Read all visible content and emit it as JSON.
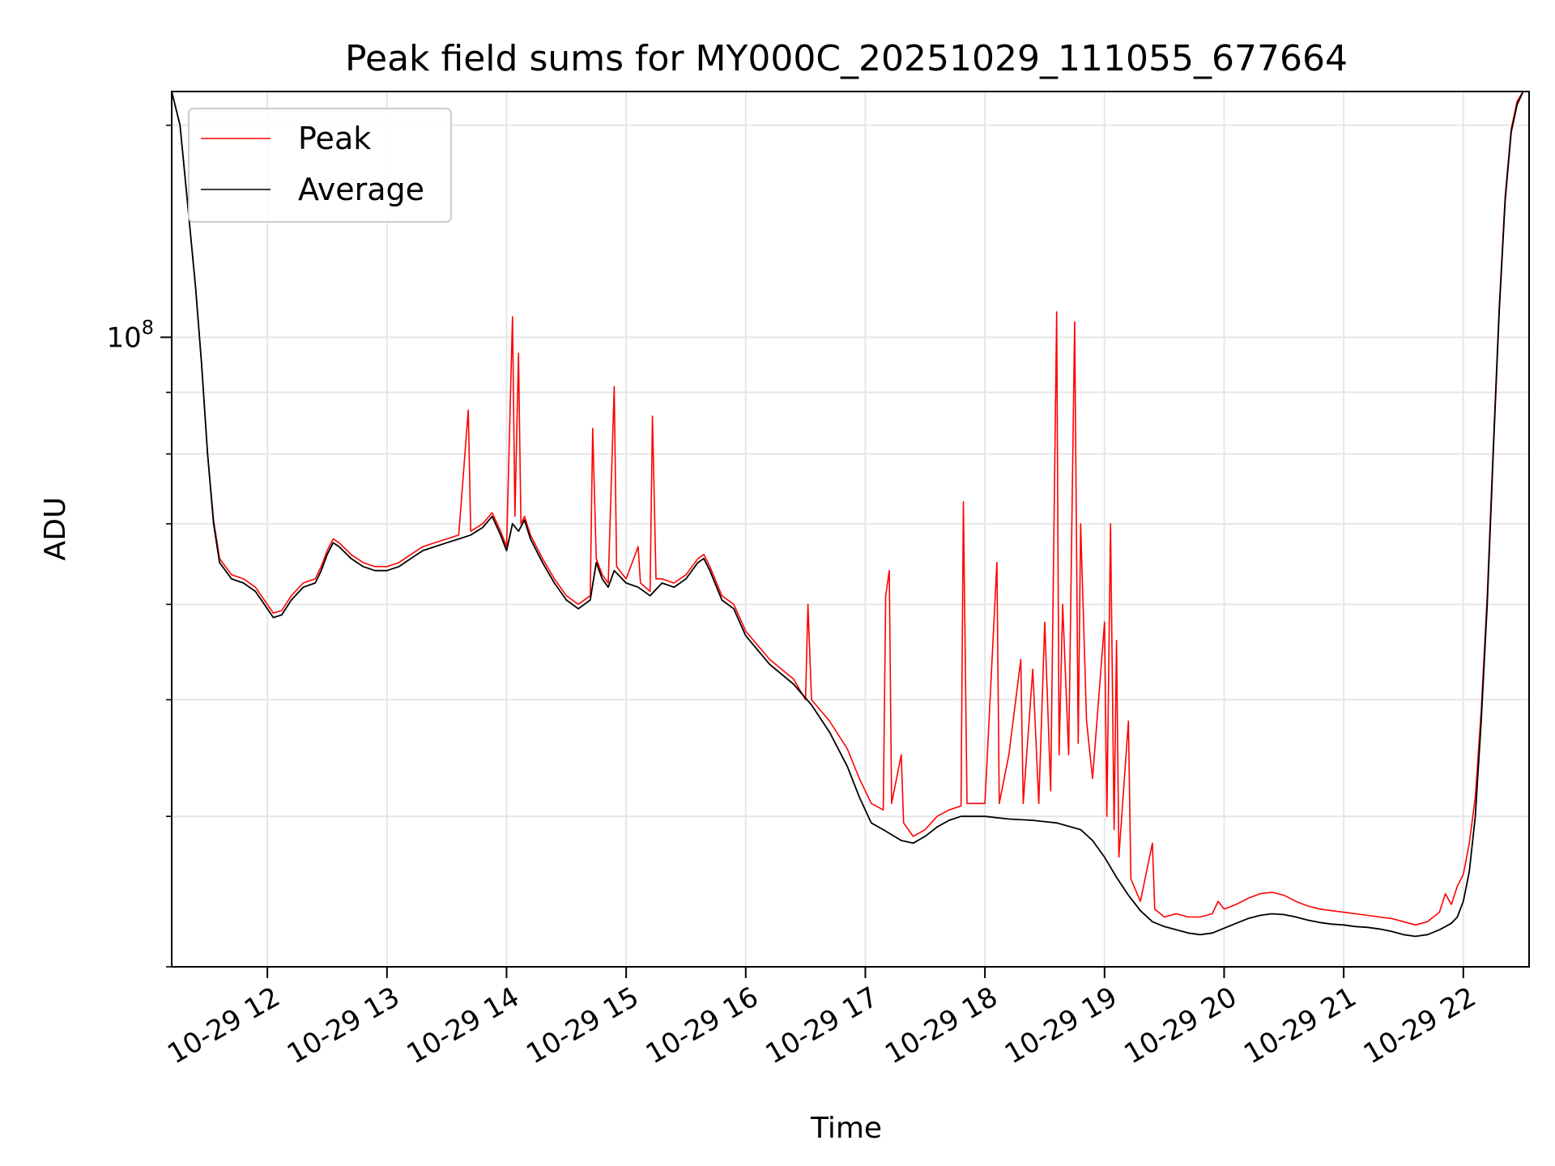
{
  "chart_data": {
    "type": "line",
    "title": "Peak field sums for MY000C_20251029_111055_677664",
    "xlabel": "Time",
    "ylabel": "ADU",
    "yscale": "log",
    "ylim": [
      30000000,
      160000000
    ],
    "xlim": [
      11.2,
      22.55
    ],
    "x_unit": "hour of 2025-10-29",
    "grid": true,
    "legend_position": "top-left",
    "x_ticks": [
      {
        "value": 12,
        "label": "10-29 12"
      },
      {
        "value": 13,
        "label": "10-29 13"
      },
      {
        "value": 14,
        "label": "10-29 14"
      },
      {
        "value": 15,
        "label": "10-29 15"
      },
      {
        "value": 16,
        "label": "10-29 16"
      },
      {
        "value": 17,
        "label": "10-29 17"
      },
      {
        "value": 18,
        "label": "10-29 18"
      },
      {
        "value": 19,
        "label": "10-29 19"
      },
      {
        "value": 20,
        "label": "10-29 20"
      },
      {
        "value": 21,
        "label": "10-29 21"
      },
      {
        "value": 22,
        "label": "10-29 22"
      }
    ],
    "y_ticks_major": [
      {
        "value": 100000000,
        "label_base": "10",
        "label_exp": "8"
      }
    ],
    "y_ticks_minor": [
      30000000,
      40000000,
      50000000,
      60000000,
      70000000,
      80000000,
      90000000
    ],
    "series": [
      {
        "name": "Average",
        "color": "#000000",
        "points": [
          [
            11.2,
            160000000
          ],
          [
            11.27,
            150000000
          ],
          [
            11.33,
            130000000
          ],
          [
            11.4,
            110000000
          ],
          [
            11.45,
            95000000
          ],
          [
            11.5,
            80000000
          ],
          [
            11.55,
            70000000
          ],
          [
            11.6,
            65000000
          ],
          [
            11.7,
            63000000
          ],
          [
            11.8,
            62500000
          ],
          [
            11.9,
            61500000
          ],
          [
            12.0,
            59500000
          ],
          [
            12.05,
            58500000
          ],
          [
            12.12,
            58800000
          ],
          [
            12.2,
            60500000
          ],
          [
            12.3,
            62000000
          ],
          [
            12.4,
            62500000
          ],
          [
            12.45,
            64000000
          ],
          [
            12.5,
            66000000
          ],
          [
            12.55,
            67500000
          ],
          [
            12.6,
            67000000
          ],
          [
            12.7,
            65500000
          ],
          [
            12.8,
            64500000
          ],
          [
            12.9,
            64000000
          ],
          [
            13.0,
            64000000
          ],
          [
            13.1,
            64500000
          ],
          [
            13.2,
            65500000
          ],
          [
            13.3,
            66500000
          ],
          [
            13.4,
            67000000
          ],
          [
            13.5,
            67500000
          ],
          [
            13.6,
            68000000
          ],
          [
            13.7,
            68500000
          ],
          [
            13.8,
            69500000
          ],
          [
            13.88,
            71000000
          ],
          [
            13.95,
            68500000
          ],
          [
            14.0,
            66500000
          ],
          [
            14.05,
            70000000
          ],
          [
            14.1,
            69000000
          ],
          [
            14.15,
            70500000
          ],
          [
            14.2,
            68000000
          ],
          [
            14.3,
            65000000
          ],
          [
            14.4,
            62500000
          ],
          [
            14.5,
            60500000
          ],
          [
            14.6,
            59500000
          ],
          [
            14.7,
            60500000
          ],
          [
            14.75,
            65000000
          ],
          [
            14.8,
            63000000
          ],
          [
            14.85,
            62000000
          ],
          [
            14.9,
            64000000
          ],
          [
            15.0,
            62500000
          ],
          [
            15.1,
            62000000
          ],
          [
            15.2,
            61000000
          ],
          [
            15.3,
            62500000
          ],
          [
            15.4,
            62000000
          ],
          [
            15.5,
            63000000
          ],
          [
            15.6,
            65000000
          ],
          [
            15.65,
            65500000
          ],
          [
            15.7,
            64000000
          ],
          [
            15.8,
            60500000
          ],
          [
            15.9,
            59500000
          ],
          [
            16.0,
            56500000
          ],
          [
            16.2,
            53500000
          ],
          [
            16.4,
            51500000
          ],
          [
            16.55,
            49500000
          ],
          [
            16.7,
            47000000
          ],
          [
            16.85,
            44000000
          ],
          [
            16.95,
            41500000
          ],
          [
            17.05,
            39500000
          ],
          [
            17.15,
            39000000
          ],
          [
            17.3,
            38200000
          ],
          [
            17.4,
            38000000
          ],
          [
            17.5,
            38500000
          ],
          [
            17.6,
            39200000
          ],
          [
            17.7,
            39700000
          ],
          [
            17.8,
            40000000
          ],
          [
            18.0,
            40000000
          ],
          [
            18.2,
            39800000
          ],
          [
            18.4,
            39700000
          ],
          [
            18.6,
            39500000
          ],
          [
            18.8,
            39000000
          ],
          [
            18.9,
            38200000
          ],
          [
            19.0,
            37000000
          ],
          [
            19.1,
            35600000
          ],
          [
            19.2,
            34400000
          ],
          [
            19.3,
            33400000
          ],
          [
            19.4,
            32700000
          ],
          [
            19.5,
            32400000
          ],
          [
            19.6,
            32200000
          ],
          [
            19.7,
            32000000
          ],
          [
            19.8,
            31900000
          ],
          [
            19.9,
            32000000
          ],
          [
            20.0,
            32300000
          ],
          [
            20.1,
            32600000
          ],
          [
            20.2,
            32900000
          ],
          [
            20.3,
            33100000
          ],
          [
            20.4,
            33200000
          ],
          [
            20.5,
            33150000
          ],
          [
            20.6,
            33000000
          ],
          [
            20.7,
            32800000
          ],
          [
            20.8,
            32650000
          ],
          [
            20.9,
            32550000
          ],
          [
            21.0,
            32500000
          ],
          [
            21.1,
            32400000
          ],
          [
            21.2,
            32350000
          ],
          [
            21.3,
            32250000
          ],
          [
            21.4,
            32100000
          ],
          [
            21.5,
            31900000
          ],
          [
            21.6,
            31800000
          ],
          [
            21.7,
            31900000
          ],
          [
            21.8,
            32200000
          ],
          [
            21.9,
            32600000
          ],
          [
            21.95,
            33000000
          ],
          [
            22.0,
            34000000
          ],
          [
            22.05,
            36000000
          ],
          [
            22.1,
            40000000
          ],
          [
            22.15,
            48000000
          ],
          [
            22.2,
            60000000
          ],
          [
            22.25,
            80000000
          ],
          [
            22.3,
            105000000
          ],
          [
            22.35,
            130000000
          ],
          [
            22.4,
            148000000
          ],
          [
            22.45,
            156000000
          ],
          [
            22.5,
            160000000
          ]
        ]
      },
      {
        "name": "Peak",
        "color": "#ff0000",
        "points": [
          [
            11.2,
            160000000
          ],
          [
            11.27,
            150000000
          ],
          [
            11.33,
            130000000
          ],
          [
            11.4,
            110000000
          ],
          [
            11.45,
            95000000
          ],
          [
            11.5,
            80000000
          ],
          [
            11.55,
            70500000
          ],
          [
            11.6,
            65500000
          ],
          [
            11.7,
            63500000
          ],
          [
            11.8,
            63000000
          ],
          [
            11.9,
            62000000
          ],
          [
            12.0,
            60000000
          ],
          [
            12.05,
            59000000
          ],
          [
            12.12,
            59300000
          ],
          [
            12.2,
            61000000
          ],
          [
            12.3,
            62500000
          ],
          [
            12.4,
            63000000
          ],
          [
            12.45,
            64500000
          ],
          [
            12.5,
            66500000
          ],
          [
            12.55,
            68000000
          ],
          [
            12.6,
            67500000
          ],
          [
            12.7,
            66000000
          ],
          [
            12.8,
            65000000
          ],
          [
            12.9,
            64500000
          ],
          [
            13.0,
            64500000
          ],
          [
            13.1,
            65000000
          ],
          [
            13.2,
            66000000
          ],
          [
            13.3,
            67000000
          ],
          [
            13.4,
            67500000
          ],
          [
            13.5,
            68000000
          ],
          [
            13.6,
            68500000
          ],
          [
            13.68,
            87000000
          ],
          [
            13.7,
            69000000
          ],
          [
            13.8,
            70000000
          ],
          [
            13.88,
            71500000
          ],
          [
            13.95,
            69000000
          ],
          [
            14.0,
            67000000
          ],
          [
            14.05,
            104000000
          ],
          [
            14.07,
            71000000
          ],
          [
            14.1,
            97000000
          ],
          [
            14.12,
            70000000
          ],
          [
            14.15,
            71000000
          ],
          [
            14.2,
            68500000
          ],
          [
            14.3,
            65500000
          ],
          [
            14.4,
            63000000
          ],
          [
            14.5,
            61000000
          ],
          [
            14.6,
            60000000
          ],
          [
            14.7,
            61000000
          ],
          [
            14.72,
            84000000
          ],
          [
            14.75,
            65500000
          ],
          [
            14.8,
            63500000
          ],
          [
            14.85,
            62500000
          ],
          [
            14.9,
            91000000
          ],
          [
            14.92,
            64500000
          ],
          [
            15.0,
            63000000
          ],
          [
            15.1,
            67000000
          ],
          [
            15.12,
            62500000
          ],
          [
            15.2,
            61500000
          ],
          [
            15.22,
            86000000
          ],
          [
            15.25,
            63000000
          ],
          [
            15.3,
            63000000
          ],
          [
            15.4,
            62500000
          ],
          [
            15.5,
            63500000
          ],
          [
            15.6,
            65500000
          ],
          [
            15.65,
            66000000
          ],
          [
            15.7,
            64500000
          ],
          [
            15.8,
            61000000
          ],
          [
            15.9,
            60000000
          ],
          [
            16.0,
            57000000
          ],
          [
            16.2,
            54000000
          ],
          [
            16.4,
            52000000
          ],
          [
            16.5,
            50000000
          ],
          [
            16.52,
            60000000
          ],
          [
            16.55,
            50000000
          ],
          [
            16.7,
            48000000
          ],
          [
            16.85,
            45500000
          ],
          [
            16.95,
            43000000
          ],
          [
            17.05,
            41000000
          ],
          [
            17.15,
            40500000
          ],
          [
            17.17,
            61000000
          ],
          [
            17.2,
            64000000
          ],
          [
            17.22,
            41000000
          ],
          [
            17.3,
            45000000
          ],
          [
            17.32,
            39500000
          ],
          [
            17.4,
            38500000
          ],
          [
            17.5,
            39000000
          ],
          [
            17.6,
            40000000
          ],
          [
            17.7,
            40500000
          ],
          [
            17.8,
            40800000
          ],
          [
            17.82,
            73000000
          ],
          [
            17.85,
            41000000
          ],
          [
            18.0,
            41000000
          ],
          [
            18.1,
            65000000
          ],
          [
            18.12,
            41000000
          ],
          [
            18.2,
            45000000
          ],
          [
            18.3,
            54000000
          ],
          [
            18.32,
            41000000
          ],
          [
            18.4,
            53000000
          ],
          [
            18.45,
            41000000
          ],
          [
            18.5,
            58000000
          ],
          [
            18.55,
            42000000
          ],
          [
            18.6,
            105000000
          ],
          [
            18.62,
            45000000
          ],
          [
            18.65,
            60000000
          ],
          [
            18.7,
            45000000
          ],
          [
            18.75,
            103000000
          ],
          [
            18.78,
            46000000
          ],
          [
            18.8,
            70000000
          ],
          [
            18.85,
            48000000
          ],
          [
            18.9,
            43000000
          ],
          [
            19.0,
            58000000
          ],
          [
            19.02,
            40000000
          ],
          [
            19.05,
            70000000
          ],
          [
            19.08,
            39000000
          ],
          [
            19.1,
            56000000
          ],
          [
            19.12,
            37000000
          ],
          [
            19.2,
            48000000
          ],
          [
            19.22,
            35500000
          ],
          [
            19.3,
            34000000
          ],
          [
            19.4,
            38000000
          ],
          [
            19.42,
            33500000
          ],
          [
            19.5,
            33000000
          ],
          [
            19.6,
            33200000
          ],
          [
            19.7,
            33000000
          ],
          [
            19.8,
            33000000
          ],
          [
            19.9,
            33200000
          ],
          [
            19.95,
            34000000
          ],
          [
            20.0,
            33500000
          ],
          [
            20.1,
            33800000
          ],
          [
            20.2,
            34200000
          ],
          [
            20.3,
            34500000
          ],
          [
            20.4,
            34600000
          ],
          [
            20.5,
            34400000
          ],
          [
            20.6,
            34000000
          ],
          [
            20.7,
            33700000
          ],
          [
            20.8,
            33500000
          ],
          [
            20.9,
            33400000
          ],
          [
            21.0,
            33300000
          ],
          [
            21.1,
            33200000
          ],
          [
            21.2,
            33100000
          ],
          [
            21.3,
            33000000
          ],
          [
            21.4,
            32900000
          ],
          [
            21.5,
            32700000
          ],
          [
            21.6,
            32500000
          ],
          [
            21.7,
            32700000
          ],
          [
            21.8,
            33300000
          ],
          [
            21.85,
            34500000
          ],
          [
            21.9,
            33800000
          ],
          [
            21.95,
            35000000
          ],
          [
            22.0,
            35800000
          ],
          [
            22.05,
            38000000
          ],
          [
            22.1,
            41500000
          ],
          [
            22.15,
            49000000
          ],
          [
            22.2,
            61000000
          ],
          [
            22.25,
            81000000
          ],
          [
            22.3,
            106000000
          ],
          [
            22.35,
            131000000
          ],
          [
            22.4,
            149000000
          ],
          [
            22.45,
            157000000
          ],
          [
            22.5,
            160000000
          ]
        ]
      }
    ]
  }
}
